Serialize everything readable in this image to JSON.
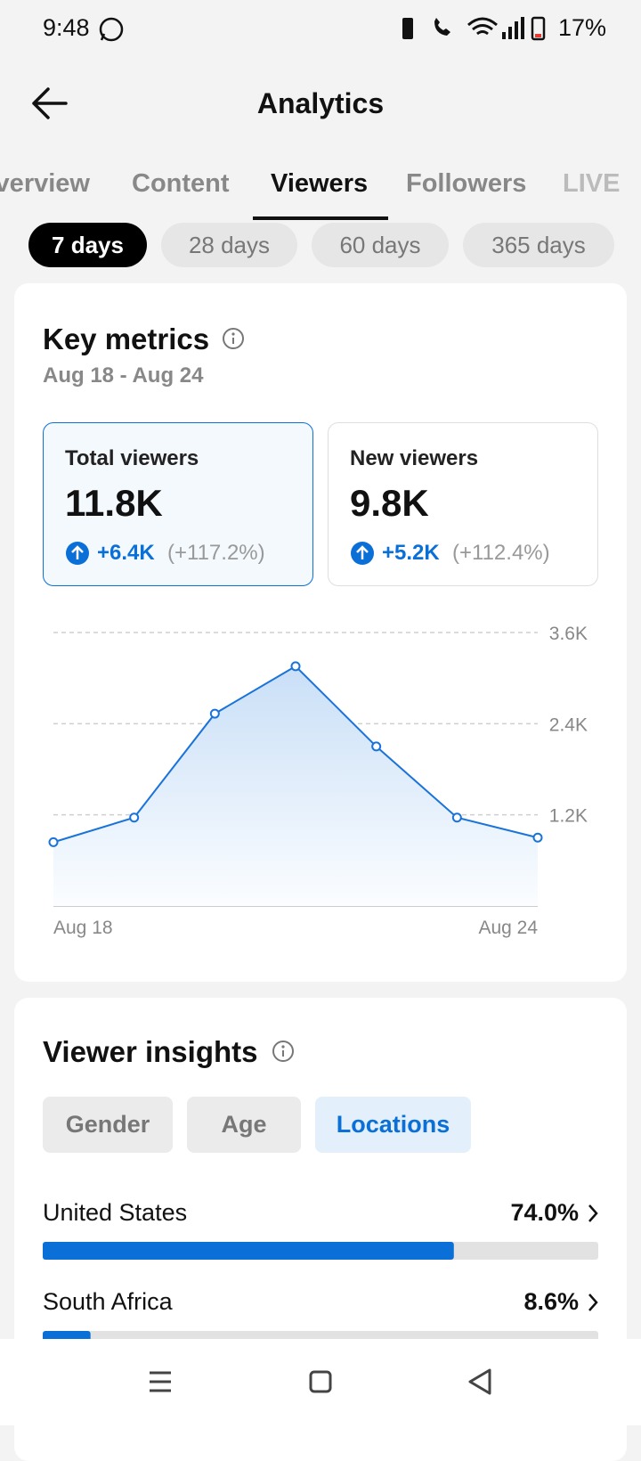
{
  "status_bar": {
    "time": "9:48",
    "battery": "17%"
  },
  "header": {
    "title": "Analytics"
  },
  "tabs": [
    "Overview",
    "Content",
    "Viewers",
    "Followers",
    "LIVE"
  ],
  "periods": [
    "7 days",
    "28 days",
    "60 days",
    "365 days"
  ],
  "key_metrics": {
    "title": "Key metrics",
    "date_range": "Aug 18 - Aug 24",
    "cards": [
      {
        "label": "Total viewers",
        "value": "11.8K",
        "change": "+6.4K",
        "percent": "(+117.2%)"
      },
      {
        "label": "New viewers",
        "value": "9.8K",
        "change": "+5.2K",
        "percent": "(+112.4%)"
      }
    ]
  },
  "chart_data": {
    "type": "area",
    "categories": [
      "Aug 18",
      null,
      null,
      null,
      null,
      null,
      "Aug 24"
    ],
    "series": [
      {
        "color": "#1a73d9",
        "values": [
          840,
          1164,
          2532,
          3156,
          2100,
          1164,
          900
        ]
      }
    ],
    "ylim": [
      0,
      3600
    ],
    "yticks": [
      {
        "value": 1200,
        "label": "1.2K"
      },
      {
        "value": 2400,
        "label": "2.4K"
      },
      {
        "value": 3600,
        "label": "3.6K"
      }
    ],
    "grid": true
  },
  "insights": {
    "title": "Viewer insights",
    "filters": [
      "Gender",
      "Age",
      "Locations"
    ],
    "categories": [
      "United States",
      "South Africa"
    ],
    "values": [
      74.0,
      8.6
    ],
    "value_labels": [
      "74.0%",
      "8.6%"
    ],
    "xlim": [
      0,
      100
    ],
    "color": "#0a6fd6"
  }
}
